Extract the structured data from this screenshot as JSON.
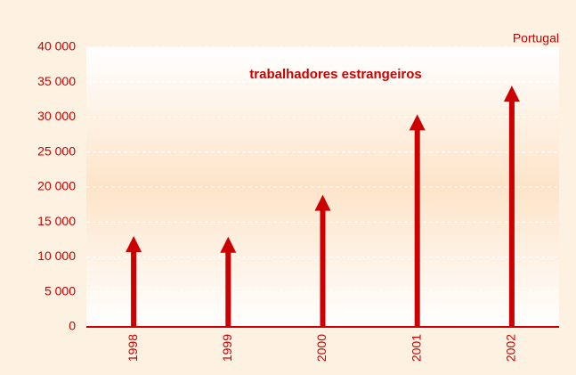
{
  "chart_data": {
    "type": "arrow",
    "title": "trabalhadores estrangeiros",
    "subtitle": "Portugal",
    "categories": [
      "1998",
      "1999",
      "2000",
      "2001",
      "2002"
    ],
    "values": [
      13000,
      12900,
      18900,
      30400,
      34500
    ],
    "color": "#cc0000",
    "ylim": [
      0,
      40000
    ],
    "yticks": [
      0,
      {
        "value": 5000,
        "label": "5 000"
      },
      {
        "value": 10000,
        "label": "10 000"
      },
      {
        "value": 15000,
        "label": "15 000"
      },
      {
        "value": 20000,
        "label": "20 000"
      },
      {
        "value": 25000,
        "label": "25 000"
      },
      {
        "value": 30000,
        "label": "30 000"
      },
      {
        "value": 35000,
        "label": "35 000"
      },
      {
        "value": 40000,
        "label": "40 000"
      }
    ],
    "grid": true
  }
}
